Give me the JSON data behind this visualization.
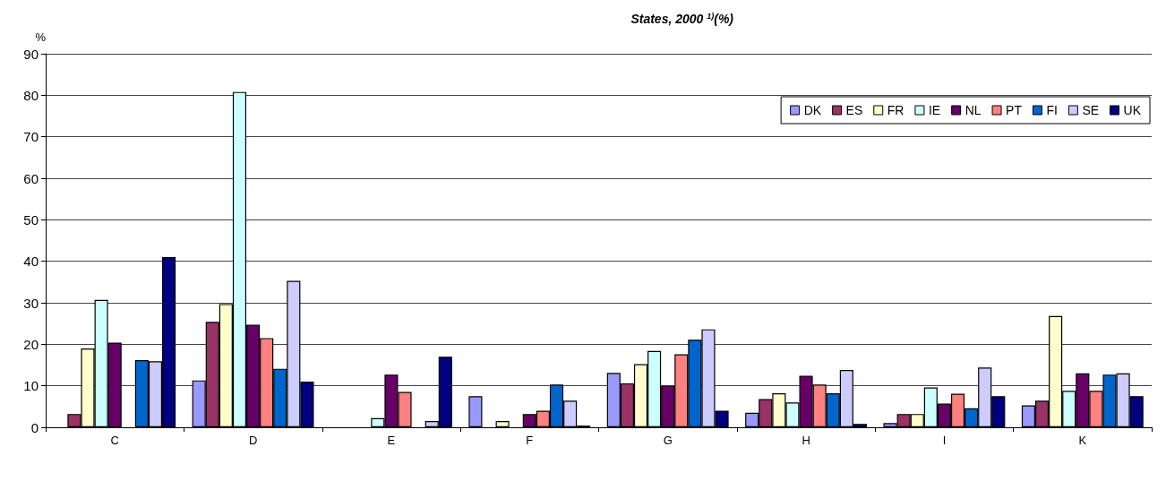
{
  "chart_data": {
    "type": "bar",
    "title": "States, 2000 $^{1)}$(%)",
    "ylabel": "%",
    "categories": [
      "C",
      "D",
      "E",
      "F",
      "G",
      "H",
      "I",
      "K"
    ],
    "series": [
      {
        "name": "DK",
        "color": "#9999ff",
        "values": [
          null,
          11.3,
          null,
          7.5,
          13.1,
          3.5,
          1.0,
          5.3
        ]
      },
      {
        "name": "ES",
        "color": "#993366",
        "values": [
          3.2,
          25.4,
          null,
          null,
          10.6,
          6.8,
          3.2,
          6.4
        ]
      },
      {
        "name": "FR",
        "color": "#ffffcc",
        "values": [
          19.0,
          29.7,
          null,
          1.5,
          15.2,
          8.2,
          3.2,
          26.8
        ]
      },
      {
        "name": "IE",
        "color": "#ccffff",
        "values": [
          30.7,
          80.8,
          2.2,
          null,
          18.4,
          6.0,
          9.6,
          8.8
        ]
      },
      {
        "name": "NL",
        "color": "#660066",
        "values": [
          20.4,
          24.7,
          12.7,
          3.2,
          10.0,
          12.4,
          5.7,
          13.0
        ]
      },
      {
        "name": "PT",
        "color": "#ff8080",
        "values": [
          null,
          21.5,
          8.5,
          4.0,
          17.6,
          10.3,
          8.1,
          8.8
        ]
      },
      {
        "name": "FI",
        "color": "#0066cc",
        "values": [
          16.2,
          14.1,
          null,
          10.3,
          21.1,
          8.2,
          4.6,
          12.7
        ]
      },
      {
        "name": "SE",
        "color": "#ccccff",
        "values": [
          15.9,
          35.3,
          1.5,
          6.4,
          23.6,
          13.8,
          14.4,
          13.0
        ]
      },
      {
        "name": "UK",
        "color": "#000080",
        "values": [
          41.0,
          11.0,
          17.0,
          0.4,
          4.0,
          0.8,
          7.5,
          7.5
        ]
      }
    ],
    "ylim": [
      0,
      90
    ],
    "yticks": [
      0,
      10,
      20,
      30,
      40,
      50,
      60,
      70,
      80,
      90
    ],
    "grid": "y",
    "legend": "top right"
  }
}
